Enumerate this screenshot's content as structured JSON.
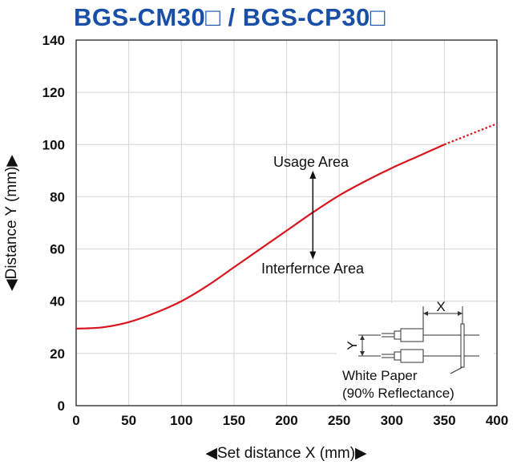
{
  "title": "BGS-CM30□ / BGS-CP30□",
  "chart_data": {
    "type": "line",
    "title": "BGS-CM30□ / BGS-CP30□",
    "xlabel": "◀Set distance X (mm)▶",
    "ylabel": "◀Distance Y (mm)▶",
    "xlim": [
      0,
      400
    ],
    "ylim": [
      0,
      140
    ],
    "xticks": [
      0,
      50,
      100,
      150,
      200,
      250,
      300,
      350,
      400
    ],
    "yticks": [
      0,
      20,
      40,
      60,
      80,
      100,
      120,
      140
    ],
    "grid": true,
    "series": [
      {
        "color": "#d9141c",
        "x": [
          0,
          25,
          50,
          75,
          100,
          125,
          150,
          175,
          200,
          225,
          250,
          275,
          300,
          325,
          350
        ],
        "y": [
          29.5,
          30,
          32,
          35.5,
          40,
          46,
          53,
          60,
          67,
          74,
          80.5,
          86,
          91,
          95.5,
          100
        ]
      },
      {
        "style": "dotted",
        "color": "#d9141c",
        "x": [
          350,
          375,
          400
        ],
        "y": [
          100,
          104,
          108
        ]
      }
    ],
    "annotations": {
      "upper": "Usage Area",
      "lower": "Interfernce Area",
      "arrow_x": 225,
      "arrow_y_top": 90,
      "arrow_y_bottom": 56
    }
  },
  "inset": {
    "x_label": "X",
    "y_label": "Y",
    "paper_line1": "White Paper",
    "paper_line2": "(90% Reflectance)"
  }
}
